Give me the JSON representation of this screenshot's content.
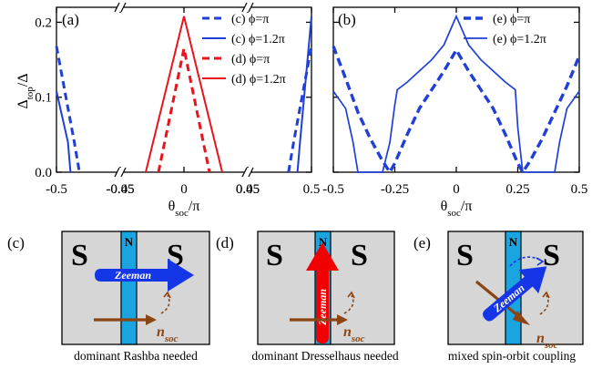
{
  "chart_data": [
    {
      "panel": "(a)",
      "type": "line",
      "ylabel_main": "Δ",
      "ylabel_sub": "top",
      "ylabel_tail": "/Δ",
      "xlabel_main": "θ",
      "xlabel_sub": "soc",
      "xlabel_tail": "/π",
      "ylim": [
        0,
        0.22
      ],
      "yticks": [
        0.0,
        0.1,
        0.2
      ],
      "ytick_labels": [
        "0.0",
        "0.1",
        "0.2"
      ],
      "broken_axis": true,
      "segments": [
        {
          "xlim": [
            -0.5,
            -0.45
          ],
          "ticks": [
            -0.5,
            -0.45
          ],
          "labels": [
            "-0.5",
            "-0.45"
          ]
        },
        {
          "xlim": [
            -0.05,
            0.05
          ],
          "ticks": [
            -0.05,
            0,
            0.05
          ],
          "labels": [
            "-0.05",
            "0",
            "0.05"
          ]
        },
        {
          "xlim": [
            0.45,
            0.5
          ],
          "ticks": [
            0.45,
            0.5
          ],
          "labels": [
            "0.45",
            "0.5"
          ]
        }
      ],
      "legend_position": "top-right",
      "series": [
        {
          "name": "(c) ϕ=π",
          "color": "#1f3fd6",
          "dashed": true,
          "points": [
            [
              -0.5,
              0.168
            ],
            [
              -0.486,
              0.04
            ],
            [
              -0.482,
              0.0
            ],
            [
              0.0,
              0.0
            ],
            [
              0.482,
              0.0
            ],
            [
              0.486,
              0.04
            ],
            [
              0.5,
              0.168
            ]
          ]
        },
        {
          "name": "(c) ϕ=1.2π",
          "color": "#1f3fd6",
          "dashed": false,
          "points": [
            [
              -0.5,
              0.108
            ],
            [
              -0.491,
              0.04
            ],
            [
              -0.489,
              0.0
            ],
            [
              0.0,
              0.0
            ],
            [
              0.489,
              0.0
            ],
            [
              0.491,
              0.04
            ],
            [
              0.5,
              0.208
            ]
          ]
        },
        {
          "name": "(d) ϕ=π",
          "color": "#e8141c",
          "dashed": true,
          "points": [
            [
              -0.5,
              0.0
            ],
            [
              -0.02,
              0.0
            ],
            [
              0.0,
              0.165
            ],
            [
              0.02,
              0.0
            ],
            [
              0.5,
              0.0
            ]
          ]
        },
        {
          "name": "(d) ϕ=1.2π",
          "color": "#e8141c",
          "dashed": false,
          "points": [
            [
              -0.5,
              0.0
            ],
            [
              -0.03,
              0.0
            ],
            [
              0.0,
              0.208
            ],
            [
              0.03,
              0.0
            ],
            [
              0.5,
              0.0
            ]
          ]
        }
      ]
    },
    {
      "panel": "(b)",
      "type": "line",
      "xlabel_main": "θ",
      "xlabel_sub": "soc",
      "xlabel_tail": "/π",
      "xlim": [
        -0.5,
        0.5
      ],
      "ylim": [
        0,
        0.22
      ],
      "xticks": [
        -0.5,
        -0.25,
        0,
        0.25,
        0.5
      ],
      "xtick_labels": [
        "-0.5",
        "-0.25",
        "0",
        "0.25",
        "0.5"
      ],
      "legend_position": "top-right",
      "series": [
        {
          "name": "(e) ϕ=π",
          "color": "#1f3fd6",
          "dashed": true,
          "points": [
            [
              -0.5,
              0.168
            ],
            [
              -0.45,
              0.125
            ],
            [
              -0.4,
              0.08
            ],
            [
              -0.35,
              0.045
            ],
            [
              -0.3,
              0.015
            ],
            [
              -0.27,
              0.0
            ],
            [
              -0.25,
              0.012
            ],
            [
              -0.2,
              0.05
            ],
            [
              -0.15,
              0.085
            ],
            [
              -0.1,
              0.11
            ],
            [
              -0.05,
              0.135
            ],
            [
              0.0,
              0.163
            ],
            [
              0.05,
              0.135
            ],
            [
              0.1,
              0.11
            ],
            [
              0.15,
              0.085
            ],
            [
              0.2,
              0.05
            ],
            [
              0.25,
              0.012
            ],
            [
              0.27,
              0.0
            ],
            [
              0.3,
              0.015
            ],
            [
              0.35,
              0.045
            ],
            [
              0.4,
              0.08
            ],
            [
              0.45,
              0.115
            ],
            [
              0.5,
              0.155
            ]
          ]
        },
        {
          "name": "(e) ϕ=1.2π",
          "color": "#1f3fd6",
          "dashed": false,
          "points": [
            [
              -0.5,
              0.108
            ],
            [
              -0.45,
              0.085
            ],
            [
              -0.42,
              0.04
            ],
            [
              -0.4,
              0.0
            ],
            [
              -0.3,
              0.0
            ],
            [
              -0.27,
              0.04
            ],
            [
              -0.25,
              0.09
            ],
            [
              -0.24,
              0.11
            ],
            [
              -0.2,
              0.12
            ],
            [
              -0.15,
              0.135
            ],
            [
              -0.1,
              0.15
            ],
            [
              -0.05,
              0.17
            ],
            [
              0.0,
              0.208
            ],
            [
              0.05,
              0.17
            ],
            [
              0.1,
              0.15
            ],
            [
              0.15,
              0.135
            ],
            [
              0.2,
              0.12
            ],
            [
              0.24,
              0.11
            ],
            [
              0.25,
              0.06
            ],
            [
              0.27,
              0.0
            ],
            [
              0.4,
              0.0
            ],
            [
              0.42,
              0.04
            ],
            [
              0.45,
              0.085
            ],
            [
              0.5,
              0.108
            ]
          ]
        }
      ]
    }
  ],
  "schematics": [
    {
      "panel": "(c)",
      "left": "S",
      "right": "S",
      "junction": "N",
      "arrow_label": "Zeeman",
      "arrow_direction": "right",
      "arrow_color": "#1536e6",
      "soc_main": "n",
      "soc_sub": "soc",
      "caption": "dominant Rashba needed"
    },
    {
      "panel": "(d)",
      "left": "S",
      "right": "S",
      "junction": "N",
      "arrow_label": "Zeeman",
      "arrow_direction": "up",
      "arrow_color": "#f00000",
      "soc_main": "n",
      "soc_sub": "soc",
      "caption": "dominant Dresselhaus needed"
    },
    {
      "panel": "(e)",
      "left": "S",
      "right": "S",
      "junction": "N",
      "arrow_label": "Zeeman",
      "arrow_direction": "up-right",
      "arrow_color": "#1536e6",
      "soc_main": "n",
      "soc_sub": "soc",
      "caption": "mixed spin-orbit coupling"
    }
  ],
  "colors": {
    "panel_fill": "#d6d6d6",
    "junction": "#1aa5e0",
    "soc_arrow": "#8b4513"
  }
}
